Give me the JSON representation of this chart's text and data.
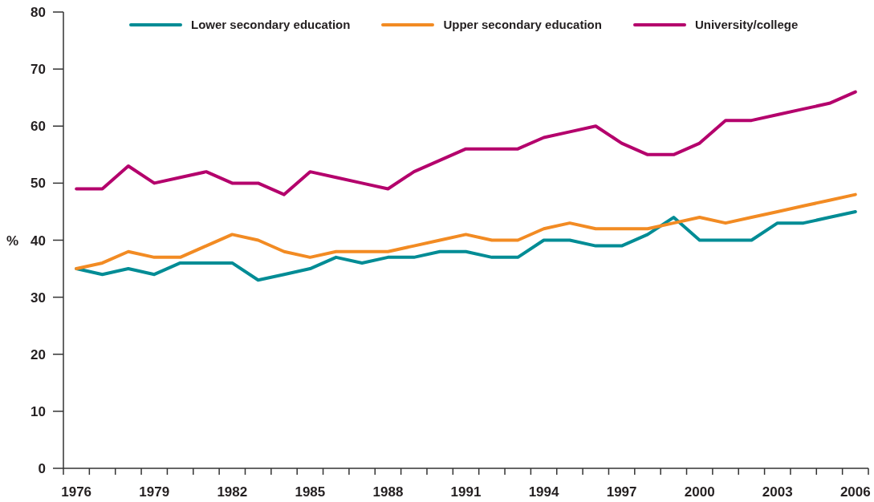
{
  "chart_data": {
    "type": "line",
    "ylabel": "%",
    "x": [
      1976,
      1977,
      1978,
      1979,
      1980,
      1981,
      1982,
      1983,
      1984,
      1985,
      1986,
      1987,
      1988,
      1989,
      1990,
      1991,
      1992,
      1993,
      1994,
      1995,
      1996,
      1997,
      1998,
      1999,
      2000,
      2001,
      2002,
      2003,
      2004,
      2005,
      2006
    ],
    "xlim": [
      1975.5,
      2006.5
    ],
    "xticks": [
      {
        "value": 1975.5,
        "label": null
      },
      1976,
      {
        "value": 1976.5,
        "label": null
      },
      {
        "value": 1977.5,
        "label": null
      },
      {
        "value": 1978.5,
        "label": null
      },
      1979,
      {
        "value": 1979.5,
        "label": null
      },
      {
        "value": 1980.5,
        "label": null
      },
      {
        "value": 1981.5,
        "label": null
      },
      1982,
      {
        "value": 1982.5,
        "label": null
      },
      {
        "value": 1983.5,
        "label": null
      },
      {
        "value": 1984.5,
        "label": null
      },
      1985,
      {
        "value": 1985.5,
        "label": null
      },
      {
        "value": 1986.5,
        "label": null
      },
      {
        "value": 1987.5,
        "label": null
      },
      1988,
      {
        "value": 1988.5,
        "label": null
      },
      {
        "value": 1989.5,
        "label": null
      },
      {
        "value": 1990.5,
        "label": null
      },
      1991,
      {
        "value": 1991.5,
        "label": null
      },
      {
        "value": 1992.5,
        "label": null
      },
      {
        "value": 1993.5,
        "label": null
      },
      1994,
      {
        "value": 1994.5,
        "label": null
      },
      {
        "value": 1995.5,
        "label": null
      },
      {
        "value": 1996.5,
        "label": null
      },
      1997,
      {
        "value": 1997.5,
        "label": null
      },
      {
        "value": 1998.5,
        "label": null
      },
      {
        "value": 1999.5,
        "label": null
      },
      2000,
      {
        "value": 2000.5,
        "label": null
      },
      {
        "value": 2001.5,
        "label": null
      },
      {
        "value": 2002.5,
        "label": null
      },
      2003,
      {
        "value": 2003.5,
        "label": null
      },
      {
        "value": 2004.5,
        "label": null
      },
      {
        "value": 2005.5,
        "label": null
      },
      2006,
      {
        "value": 2006.5,
        "label": null
      }
    ],
    "ylim": [
      0,
      80
    ],
    "yticks": [
      0,
      10,
      20,
      30,
      40,
      50,
      60,
      70,
      80
    ],
    "legend": "top",
    "line_style": "solid",
    "series": [
      {
        "name": "Lower secondary education",
        "color": "#008c95",
        "values": [
          35,
          34,
          35,
          34,
          36,
          36,
          36,
          33,
          34,
          35,
          37,
          36,
          37,
          37,
          38,
          38,
          37,
          37,
          40,
          40,
          39,
          39,
          41,
          44,
          40,
          40,
          40,
          43,
          43,
          44,
          45
        ]
      },
      {
        "name": "Upper secondary education",
        "color": "#f28b23",
        "values": [
          35,
          36,
          38,
          37,
          37,
          39,
          41,
          40,
          38,
          37,
          38,
          38,
          38,
          39,
          40,
          41,
          40,
          40,
          42,
          43,
          42,
          42,
          42,
          43,
          44,
          43,
          44,
          45,
          46,
          47,
          48
        ]
      },
      {
        "name": "University/college",
        "color": "#b4006c",
        "values": [
          49,
          49,
          53,
          50,
          51,
          52,
          50,
          50,
          48,
          52,
          51,
          50,
          49,
          52,
          54,
          56,
          56,
          56,
          58,
          59,
          60,
          57,
          55,
          55,
          57,
          61,
          61,
          62,
          63,
          64,
          66
        ]
      }
    ]
  }
}
